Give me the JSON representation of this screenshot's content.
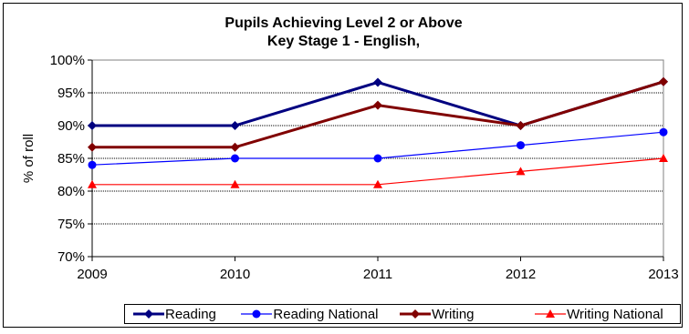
{
  "chart_data": {
    "type": "line",
    "title_lines": [
      "Pupils Achieving Level 2 or Above",
      "Key Stage 1 - English,"
    ],
    "xlabel": "",
    "ylabel": "% of roll",
    "categories": [
      "2009",
      "2010",
      "2011",
      "2012",
      "2013"
    ],
    "ylim": [
      70,
      100
    ],
    "yticks": [
      "70%",
      "75%",
      "80%",
      "85%",
      "90%",
      "95%",
      "100%"
    ],
    "grid": "horizontal",
    "legend_position": "bottom",
    "series": [
      {
        "name": "Reading",
        "values": [
          90,
          90,
          96.6,
          90,
          96.7
        ],
        "color": "#000080",
        "marker": "diamond",
        "width": 3
      },
      {
        "name": "Reading National",
        "values": [
          84,
          85,
          85,
          87,
          89
        ],
        "color": "#0000ff",
        "marker": "circle",
        "width": 1.2
      },
      {
        "name": "Writing",
        "values": [
          86.7,
          86.7,
          93.1,
          90,
          96.7
        ],
        "color": "#800000",
        "marker": "diamond",
        "width": 3
      },
      {
        "name": "Writing National",
        "values": [
          81,
          81,
          81,
          83,
          85
        ],
        "color": "#ff0000",
        "marker": "triangle",
        "width": 1.2
      }
    ]
  }
}
